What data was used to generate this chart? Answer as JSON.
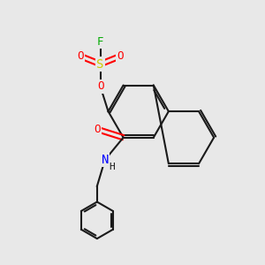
{
  "background_color": "#e8e8e8",
  "bond_color": "#1a1a1a",
  "atom_colors": {
    "O": "#ff0000",
    "N": "#0000ff",
    "S": "#cccc00",
    "F": "#00aa00",
    "C": "#1a1a1a"
  },
  "font_size_atoms": 9,
  "figsize": [
    3.0,
    3.0
  ],
  "dpi": 100
}
